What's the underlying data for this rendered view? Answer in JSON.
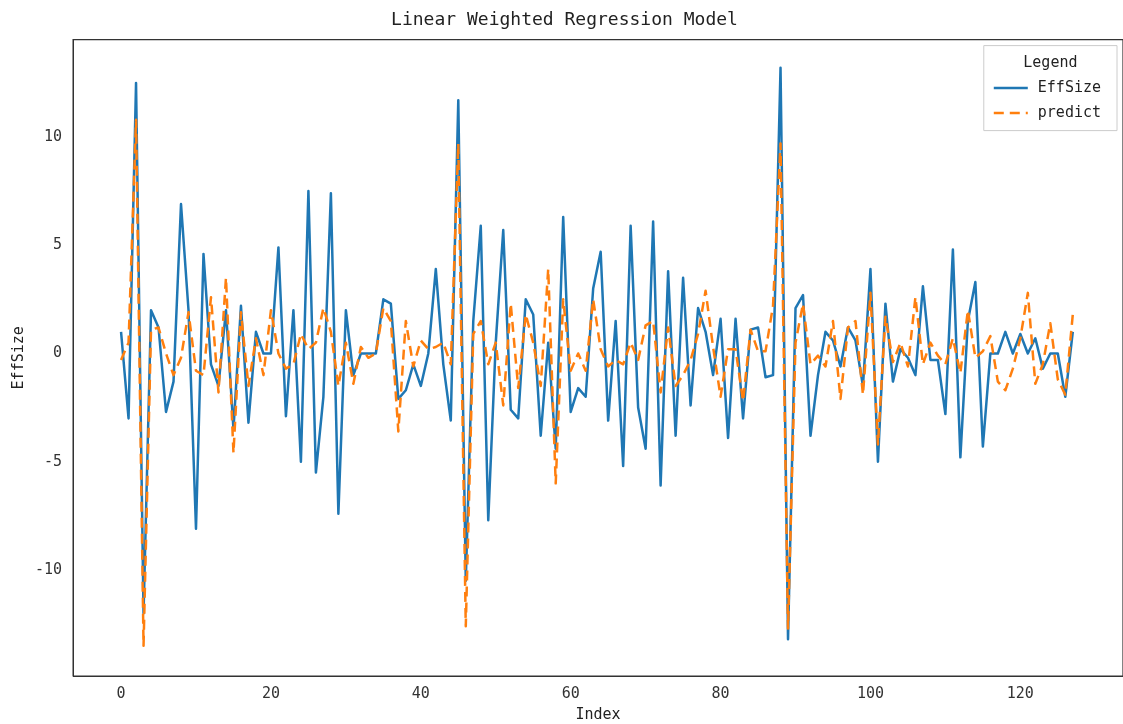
{
  "chart_data": {
    "type": "line",
    "title": "Linear Weighted Regression Model",
    "xlabel": "Index",
    "ylabel": "EffSize",
    "legend_title": "Legend",
    "legend": "top right",
    "grid": false,
    "marker": "none",
    "x": [
      0,
      1,
      2,
      3,
      4,
      5,
      6,
      7,
      8,
      9,
      10,
      11,
      12,
      13,
      14,
      15,
      16,
      17,
      18,
      19,
      20,
      21,
      22,
      23,
      24,
      25,
      26,
      27,
      28,
      29,
      30,
      31,
      32,
      33,
      34,
      35,
      36,
      37,
      38,
      39,
      40,
      41,
      42,
      43,
      44,
      45,
      46,
      47,
      48,
      49,
      50,
      51,
      52,
      53,
      54,
      55,
      56,
      57,
      58,
      59,
      60,
      61,
      62,
      63,
      64,
      65,
      66,
      67,
      68,
      69,
      70,
      71,
      72,
      73,
      74,
      75,
      76,
      77,
      78,
      79,
      80,
      81,
      82,
      83,
      84,
      85,
      86,
      87,
      88,
      89,
      90,
      91,
      92,
      93,
      94,
      95,
      96,
      97,
      98,
      99,
      100,
      101,
      102,
      103,
      104,
      105,
      106,
      107,
      108,
      109,
      110,
      111,
      112,
      113,
      114,
      115,
      116,
      117,
      118,
      119,
      120,
      121,
      122,
      123,
      124,
      125,
      126,
      127
    ],
    "xlim": [
      -6.4,
      133.7
    ],
    "xticks": [
      0,
      20,
      40,
      60,
      80,
      100,
      120
    ],
    "ylim": [
      -14.9,
      14.5
    ],
    "yticks": [
      -10,
      -5,
      0,
      5,
      10
    ],
    "series": [
      {
        "name": "EffSize",
        "color": "#1f77b4",
        "line_style": "solid",
        "values": [
          1.0,
          -3.0,
          12.5,
          -12.0,
          2.0,
          1.2,
          -2.7,
          -1.3,
          6.9,
          2.0,
          -8.1,
          4.6,
          -0.5,
          -1.5,
          2.0,
          -3.5,
          2.2,
          -3.2,
          1.0,
          0,
          0,
          4.9,
          -2.9,
          2.0,
          -5.0,
          7.5,
          -5.5,
          -2.0,
          7.4,
          -7.4,
          2.0,
          -1.0,
          0,
          0,
          0,
          2.5,
          2.3,
          -2.1,
          -1.7,
          -0.5,
          -1.5,
          0,
          3.9,
          -0.5,
          -3.1,
          11.7,
          -10.5,
          1.5,
          5.9,
          -7.7,
          0.5,
          5.7,
          -2.6,
          -3.0,
          2.5,
          1.8,
          -3.8,
          0.5,
          -4.4,
          6.3,
          -2.7,
          -1.6,
          -2.0,
          3.0,
          4.7,
          -3.1,
          1.5,
          -5.2,
          5.9,
          -2.5,
          -4.4,
          6.1,
          -6.1,
          3.8,
          -3.8,
          3.5,
          -2.4,
          2.1,
          1.0,
          -1.0,
          1.6,
          -3.9,
          1.6,
          -3.0,
          1.1,
          1.2,
          -1.1,
          -1.0,
          13.2,
          -13.2,
          2.1,
          2.7,
          -3.8,
          -1.0,
          1.0,
          0.6,
          -0.6,
          1.2,
          0.6,
          -1.5,
          3.9,
          -5.0,
          2.3,
          -1.3,
          0.2,
          -0.2,
          -1.0,
          3.1,
          -0.3,
          -0.3,
          -2.8,
          4.8,
          -4.8,
          1.5,
          3.3,
          -4.3,
          0,
          0,
          1.0,
          0,
          0.9,
          0,
          0.7,
          -0.7,
          0,
          0,
          -2.0,
          1.0
        ]
      },
      {
        "name": "predict",
        "color": "#ff7f0e",
        "line_style": "dashed",
        "values": [
          -0.3,
          0.5,
          10.8,
          -13.5,
          1.1,
          1.2,
          0,
          -1.0,
          -0.2,
          1.9,
          -0.8,
          -1.0,
          2.6,
          -1.8,
          3.5,
          -4.6,
          1.9,
          -1.5,
          0.7,
          -1.0,
          2.0,
          0,
          -0.7,
          -0.5,
          0.9,
          0.2,
          0.5,
          2.1,
          1.0,
          -1.5,
          0.5,
          -1.4,
          0.3,
          -0.2,
          0,
          2.1,
          1.5,
          -3.6,
          1.5,
          -0.6,
          0.6,
          0.2,
          0.3,
          0.5,
          -0.5,
          9.7,
          -12.6,
          0.9,
          1.5,
          -0.5,
          0.5,
          -2.4,
          2.3,
          -1.6,
          1.8,
          0.5,
          -1.5,
          3.9,
          -6.0,
          2.5,
          -0.8,
          0,
          -0.8,
          2.5,
          0.2,
          -0.6,
          -0.3,
          -0.5,
          0.5,
          -0.3,
          1.3,
          1.5,
          -1.8,
          1.2,
          -1.5,
          -1.0,
          -0.3,
          0.9,
          2.9,
          0.3,
          -2.0,
          0.2,
          0.2,
          -2.2,
          1.1,
          0.1,
          0.1,
          2.2,
          9.7,
          -12.7,
          0.5,
          2.3,
          -0.5,
          -0.1,
          -0.6,
          1.5,
          -2.1,
          1.2,
          1.5,
          -1.9,
          2.8,
          -4.2,
          1.7,
          -0.4,
          0.5,
          -0.6,
          2.6,
          -0.5,
          0.5,
          -0.1,
          -0.5,
          0.7,
          -0.9,
          2.0,
          -0.2,
          0.1,
          0.8,
          -1.3,
          -1.7,
          -0.7,
          0.7,
          2.8,
          -1.4,
          -0.5,
          1.4,
          -1.2,
          -1.9,
          1.8
        ]
      }
    ]
  }
}
